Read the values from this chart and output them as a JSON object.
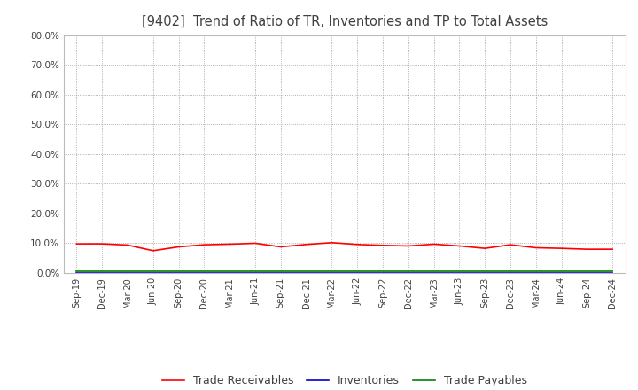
{
  "title": "[9402]  Trend of Ratio of TR, Inventories and TP to Total Assets",
  "x_labels": [
    "Sep-19",
    "Dec-19",
    "Mar-20",
    "Jun-20",
    "Sep-20",
    "Dec-20",
    "Mar-21",
    "Jun-21",
    "Sep-21",
    "Dec-21",
    "Mar-22",
    "Jun-22",
    "Sep-22",
    "Dec-22",
    "Mar-23",
    "Jun-23",
    "Sep-23",
    "Dec-23",
    "Mar-24",
    "Jun-24",
    "Sep-24",
    "Dec-24"
  ],
  "trade_receivables": [
    0.098,
    0.098,
    0.094,
    0.075,
    0.088,
    0.095,
    0.097,
    0.1,
    0.088,
    0.096,
    0.102,
    0.096,
    0.093,
    0.091,
    0.097,
    0.091,
    0.083,
    0.095,
    0.085,
    0.083,
    0.08,
    0.08
  ],
  "inventories": [
    0.001,
    0.001,
    0.001,
    0.001,
    0.001,
    0.001,
    0.001,
    0.001,
    0.001,
    0.001,
    0.001,
    0.001,
    0.001,
    0.001,
    0.001,
    0.001,
    0.001,
    0.001,
    0.001,
    0.001,
    0.001,
    0.001
  ],
  "trade_payables": [
    0.005,
    0.005,
    0.005,
    0.005,
    0.005,
    0.005,
    0.005,
    0.005,
    0.005,
    0.005,
    0.005,
    0.005,
    0.005,
    0.005,
    0.005,
    0.005,
    0.005,
    0.005,
    0.005,
    0.005,
    0.005,
    0.005
  ],
  "tr_color": "#ff0000",
  "inv_color": "#0000cc",
  "tp_color": "#008000",
  "ylim": [
    0,
    0.8
  ],
  "yticks": [
    0.0,
    0.1,
    0.2,
    0.3,
    0.4,
    0.5,
    0.6,
    0.7,
    0.8
  ],
  "background_color": "#ffffff",
  "axes_bg_color": "#ffffff",
  "grid_color": "#999999",
  "title_color": "#404040",
  "tick_color": "#404040",
  "legend_labels": [
    "Trade Receivables",
    "Inventories",
    "Trade Payables"
  ]
}
